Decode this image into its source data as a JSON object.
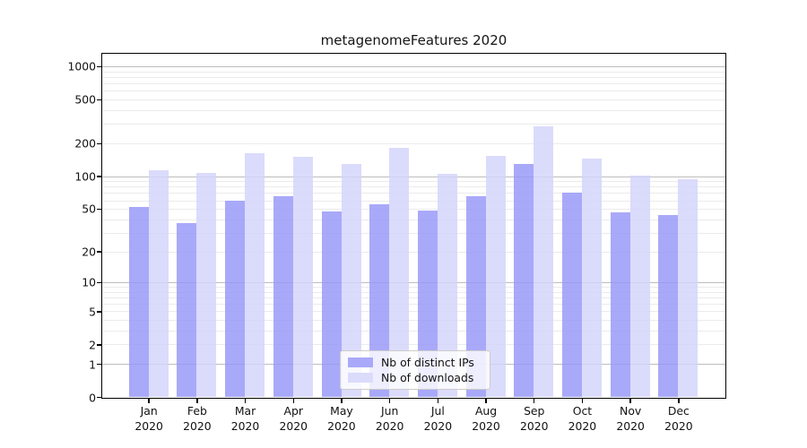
{
  "chart_data": {
    "type": "bar",
    "title": "metagenomeFeatures 2020",
    "y_scale": "log1p",
    "ylim": [
      0,
      1300
    ],
    "yticks": [
      1000,
      500,
      200,
      100,
      50,
      20,
      10,
      5,
      2,
      1,
      0
    ],
    "categories": [
      "Jan",
      "Feb",
      "Mar",
      "Apr",
      "May",
      "Jun",
      "Jul",
      "Aug",
      "Sep",
      "Oct",
      "Nov",
      "Dec"
    ],
    "x_year_label": "2020",
    "series": [
      {
        "name": "Nb of distinct IPs",
        "color": "#a9a9f9",
        "fill_rgba": "rgba(150,150,248,0.82)",
        "values": [
          52,
          37,
          60,
          66,
          47,
          55,
          48,
          65,
          130,
          70,
          46,
          44
        ]
      },
      {
        "name": "Nb of downloads",
        "color": "#dbdbfb",
        "fill_rgba": "rgba(211,211,251,0.82)",
        "values": [
          113,
          108,
          163,
          150,
          128,
          180,
          105,
          153,
          285,
          146,
          101,
          93
        ]
      }
    ],
    "grid": {
      "major_values": [
        1,
        10,
        100,
        1000
      ],
      "major_color": "#bdbdbd",
      "minor_color": "#ebebeb"
    },
    "legend": {
      "position": "lower center"
    },
    "axis_color": "#000000"
  }
}
